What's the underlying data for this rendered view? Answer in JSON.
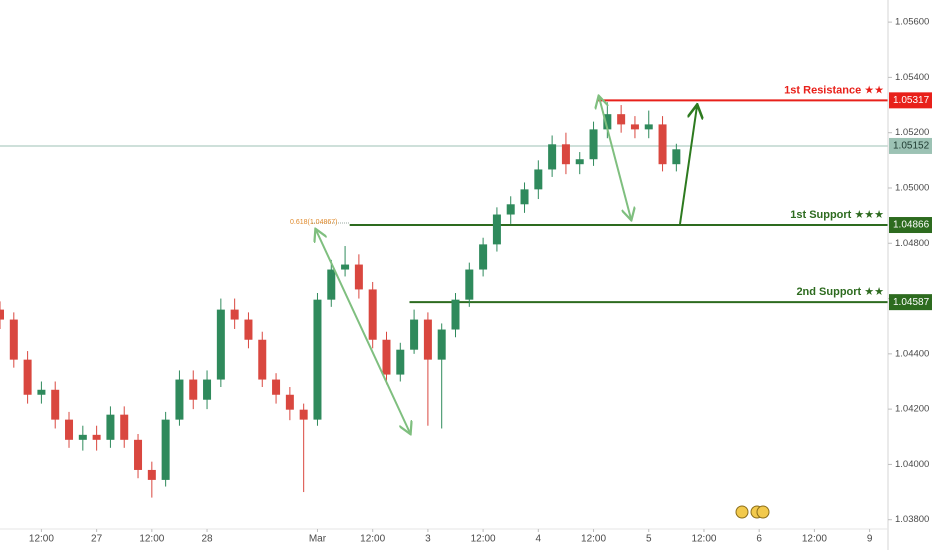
{
  "chart_data": {
    "type": "candlestick",
    "x": [
      3,
      6,
      9,
      12,
      15,
      18,
      21,
      24,
      27,
      30,
      33,
      36,
      39,
      42,
      45,
      48,
      51,
      54,
      57,
      60,
      63,
      66,
      69,
      72,
      75,
      78,
      81,
      84,
      87,
      90,
      93,
      96,
      99,
      102,
      105,
      108,
      111,
      114,
      117,
      120,
      123,
      126,
      129,
      132,
      135,
      138,
      141,
      144,
      147,
      150
    ],
    "open": [
      1.0456,
      1.04524,
      1.04379,
      1.04252,
      1.0427,
      1.04162,
      1.04089,
      1.04107,
      1.04089,
      1.0418,
      1.04089,
      1.0398,
      1.03944,
      1.04162,
      1.04307,
      1.04234,
      1.04307,
      1.0456,
      1.04524,
      1.04451,
      1.04307,
      1.04252,
      1.04198,
      1.04162,
      1.04596,
      1.04705,
      1.04723,
      1.04633,
      1.04451,
      1.04325,
      1.04415,
      1.04524,
      1.04379,
      1.04488,
      1.04596,
      1.04705,
      1.04796,
      1.04904,
      1.04941,
      1.04995,
      1.05067,
      1.05158,
      1.05086,
      1.05104,
      1.05212,
      1.05267,
      1.0523,
      1.05212,
      1.0523,
      1.05086
    ],
    "high": [
      1.0459,
      1.0455,
      1.0441,
      1.043,
      1.043,
      1.0419,
      1.0414,
      1.0414,
      1.0421,
      1.0421,
      1.0411,
      1.0401,
      1.0419,
      1.0434,
      1.0434,
      1.0434,
      1.046,
      1.046,
      1.0455,
      1.0448,
      1.0433,
      1.0428,
      1.0422,
      1.0462,
      1.0474,
      1.0479,
      1.0476,
      1.0466,
      1.0448,
      1.0444,
      1.0456,
      1.0455,
      1.0451,
      1.0462,
      1.0473,
      1.0482,
      1.0493,
      1.0497,
      1.0502,
      1.051,
      1.0519,
      1.052,
      1.0513,
      1.0524,
      1.0531,
      1.053,
      1.0526,
      1.0528,
      1.0526,
      1.0516
    ],
    "low": [
      1.0449,
      1.0435,
      1.0422,
      1.0422,
      1.0413,
      1.0406,
      1.0405,
      1.0405,
      1.0406,
      1.0406,
      1.0395,
      1.0388,
      1.0392,
      1.0414,
      1.042,
      1.042,
      1.0428,
      1.0449,
      1.0442,
      1.0428,
      1.0422,
      1.0416,
      1.039,
      1.0414,
      1.0457,
      1.0468,
      1.046,
      1.0442,
      1.0429,
      1.043,
      1.044,
      1.0414,
      1.0413,
      1.0446,
      1.0457,
      1.0468,
      1.0477,
      1.0487,
      1.0491,
      1.0496,
      1.0504,
      1.0505,
      1.0505,
      1.0508,
      1.0518,
      1.052,
      1.0518,
      1.0518,
      1.0506,
      1.0506
    ],
    "close": [
      1.04524,
      1.04379,
      1.04252,
      1.0427,
      1.04162,
      1.04089,
      1.04107,
      1.04089,
      1.0418,
      1.04089,
      1.0398,
      1.03944,
      1.04162,
      1.04307,
      1.04234,
      1.04307,
      1.0456,
      1.04524,
      1.04451,
      1.04307,
      1.04252,
      1.04198,
      1.04162,
      1.04596,
      1.04705,
      1.04723,
      1.04633,
      1.04451,
      1.04325,
      1.04415,
      1.04524,
      1.04379,
      1.04488,
      1.04596,
      1.04705,
      1.04796,
      1.04904,
      1.04941,
      1.04995,
      1.05067,
      1.05158,
      1.05086,
      1.05104,
      1.05212,
      1.05267,
      1.0523,
      1.05212,
      1.0523,
      1.05086,
      1.0514
    ],
    "up_color": "#2f8a5c",
    "down_color": "#d9473f",
    "xlim": [
      3,
      196
    ],
    "ylim": [
      1.0377,
      1.0568
    ],
    "xticks": [
      {
        "value": 12,
        "label": "12:00"
      },
      {
        "value": 24,
        "label": "27"
      },
      {
        "value": 36,
        "label": "12:00"
      },
      {
        "value": 48,
        "label": "28"
      },
      {
        "value": 72,
        "label": "Mar"
      },
      {
        "value": 84,
        "label": "12:00"
      },
      {
        "value": 96,
        "label": "3"
      },
      {
        "value": 108,
        "label": "12:00"
      },
      {
        "value": 120,
        "label": "4"
      },
      {
        "value": 132,
        "label": "12:00"
      },
      {
        "value": 144,
        "label": "5"
      },
      {
        "value": 156,
        "label": "12:00"
      },
      {
        "value": 168,
        "label": "6"
      },
      {
        "value": 180,
        "label": "12:00"
      },
      {
        "value": 192,
        "label": "9"
      }
    ],
    "yticks": [
      {
        "value": 1.056,
        "label": "1.05600"
      },
      {
        "value": 1.054,
        "label": "1.05400"
      },
      {
        "value": 1.052,
        "label": "1.05200"
      },
      {
        "value": 1.05,
        "label": "1.05000"
      },
      {
        "value": 1.048,
        "label": "1.04800"
      },
      {
        "value": 1.046,
        "label": "1.04600"
      },
      {
        "value": 1.044,
        "label": "1.04400"
      },
      {
        "value": 1.042,
        "label": "1.04200"
      },
      {
        "value": 1.04,
        "label": "1.04000"
      },
      {
        "value": 1.038,
        "label": "1.03800"
      }
    ],
    "levels": [
      {
        "name": "1st Resistance ★★",
        "value": 1.05317,
        "from": 133,
        "color": "#e8201a"
      },
      {
        "name": "1st Support ★★★",
        "value": 1.04866,
        "from": 79,
        "color": "#2d6b1f"
      },
      {
        "name": "2nd Support ★★",
        "value": 1.04587,
        "from": 92,
        "color": "#2d6b1f"
      }
    ],
    "last_price": {
      "value": 1.05152,
      "color": "#9cc2b4"
    },
    "fib_label": "0.618(1.04867)"
  }
}
